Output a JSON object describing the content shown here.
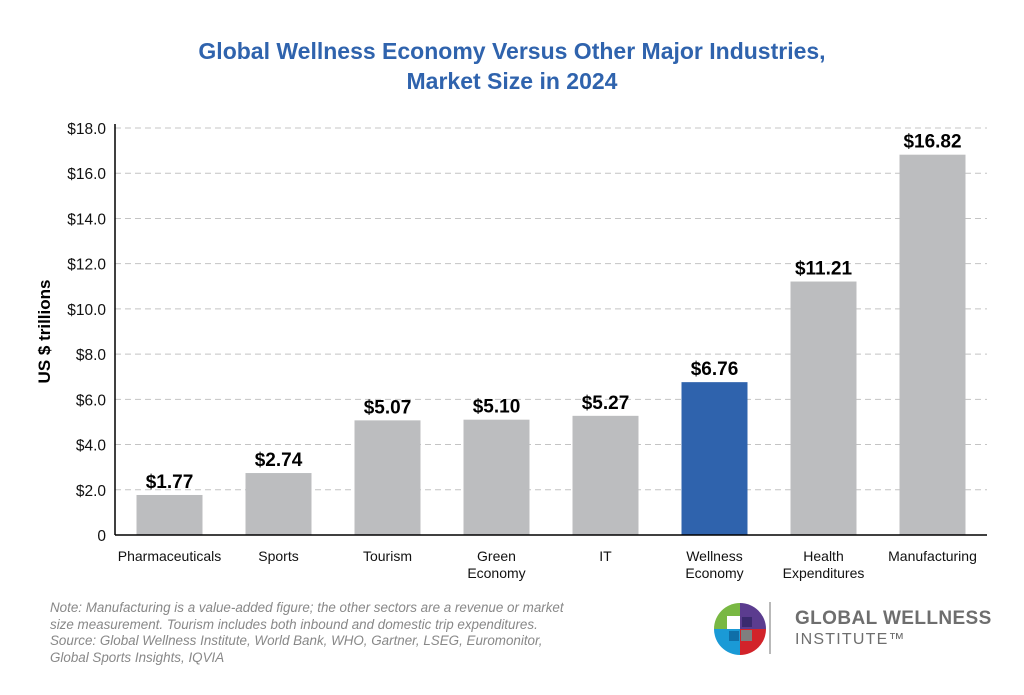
{
  "chart_data": {
    "type": "bar",
    "title": [
      "Global Wellness Economy Versus Other Major Industries,",
      "Market Size in 2024"
    ],
    "ylabel": "US $ trillions",
    "xlabel": "",
    "ylim": [
      0,
      18
    ],
    "yticks": [
      {
        "value": 0,
        "label": "0"
      },
      {
        "value": 2,
        "label": "$2.0"
      },
      {
        "value": 4,
        "label": "$4.0"
      },
      {
        "value": 6,
        "label": "$6.0"
      },
      {
        "value": 8,
        "label": "$8.0"
      },
      {
        "value": 10,
        "label": "$10.0"
      },
      {
        "value": 12,
        "label": "$12.0"
      },
      {
        "value": 14,
        "label": "$14.0"
      },
      {
        "value": 16,
        "label": "$16.0"
      },
      {
        "value": 18,
        "label": "$18.0"
      }
    ],
    "grid": "horizontal dashed",
    "categories": [
      [
        "Pharmaceuticals"
      ],
      [
        "Sports"
      ],
      [
        "Tourism"
      ],
      [
        "Green",
        "Economy"
      ],
      [
        "IT"
      ],
      [
        "Wellness",
        "Economy"
      ],
      [
        "Health",
        "Expenditures"
      ],
      [
        "Manufacturing"
      ]
    ],
    "values": [
      1.77,
      2.74,
      5.07,
      5.1,
      5.27,
      6.76,
      11.21,
      16.82
    ],
    "data_labels": [
      "$1.77",
      "$2.74",
      "$5.07",
      "$5.10",
      "$5.27",
      "$6.76",
      "$11.21",
      "$16.82"
    ],
    "highlight_index": 5,
    "colors": {
      "bar": "#bcbdbf",
      "highlight": "#2f63ad",
      "title": "#2f63ad"
    }
  },
  "note_lines": [
    "Note: Manufacturing is a value-added figure; the other sectors are a revenue or market",
    "size measurement. Tourism includes both inbound and domestic trip expenditures.",
    "Source: Global Wellness Institute, World Bank, WHO, Gartner, LSEG, Euromonitor,",
    "Global Sports Insights, IQVIA"
  ],
  "logo": {
    "line1": "GLOBAL WELLNESS",
    "line2": "INSTITUTE™",
    "icon": "gwi-logo-icon"
  }
}
